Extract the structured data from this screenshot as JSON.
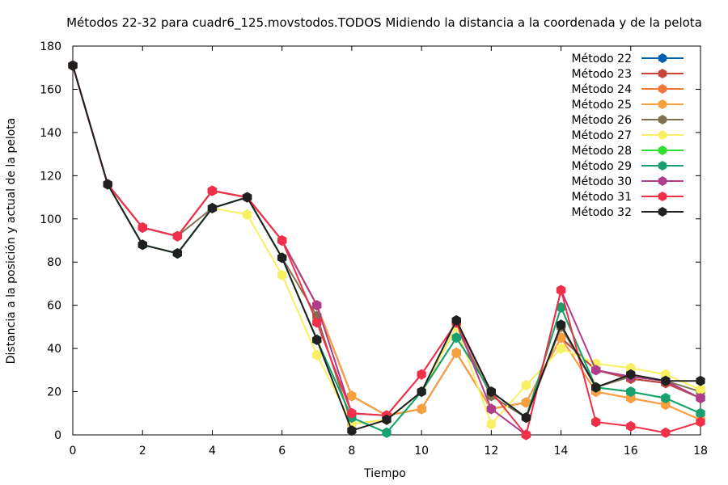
{
  "chart_data": {
    "type": "line",
    "title": "Métodos 22-32 para cuadr6_125.movstodos.TODOS Midiendo la distancia a la coordenada y de la pelota",
    "xlabel": "Tiempo",
    "ylabel": "Distancia a la posición y actual de la pelota",
    "xlim": [
      0,
      18
    ],
    "ylim": [
      0,
      180
    ],
    "x_ticks": [
      "0",
      "2",
      "4",
      "6",
      "8",
      "10",
      "12",
      "14",
      "16",
      "18"
    ],
    "y_ticks": [
      "0",
      "20",
      "40",
      "60",
      "80",
      "100",
      "120",
      "140",
      "160",
      "180"
    ],
    "grid": false,
    "legend_position": "top-right",
    "x": [
      0,
      1,
      2,
      3,
      4,
      5,
      6,
      7,
      8,
      9,
      10,
      11,
      12,
      13,
      14,
      15,
      16,
      17,
      18
    ],
    "series": [
      {
        "name": "Método 22",
        "color": "#0060ad",
        "values": [
          171,
          116,
          96,
          92,
          113,
          110,
          90,
          60,
          18,
          9,
          12,
          38,
          12,
          15,
          45,
          30,
          26,
          24,
          17
        ]
      },
      {
        "name": "Método 23",
        "color": "#c8453c",
        "values": [
          171,
          116,
          96,
          92,
          113,
          110,
          90,
          60,
          18,
          9,
          12,
          38,
          12,
          15,
          45,
          30,
          26,
          24,
          17
        ]
      },
      {
        "name": "Método 24",
        "color": "#f07838",
        "values": [
          171,
          116,
          96,
          92,
          113,
          110,
          90,
          60,
          18,
          9,
          12,
          38,
          12,
          15,
          45,
          20,
          17,
          14,
          7
        ]
      },
      {
        "name": "Método 25",
        "color": "#f8a040",
        "values": [
          171,
          116,
          96,
          92,
          113,
          110,
          90,
          60,
          18,
          9,
          12,
          38,
          12,
          15,
          45,
          20,
          17,
          14,
          7
        ]
      },
      {
        "name": "Método 26",
        "color": "#7f7050",
        "values": [
          171,
          116,
          96,
          92,
          105,
          110,
          82,
          55,
          5,
          7,
          20,
          50,
          18,
          8,
          50,
          22,
          27,
          25,
          20
        ]
      },
      {
        "name": "Método 27",
        "color": "#f8f060",
        "values": [
          171,
          116,
          88,
          84,
          105,
          102,
          74,
          37,
          5,
          7,
          20,
          50,
          5,
          23,
          40,
          33,
          31,
          28,
          21
        ]
      },
      {
        "name": "Método 28",
        "color": "#30e030",
        "values": [
          171,
          116,
          88,
          84,
          105,
          110,
          82,
          44,
          8,
          1,
          20,
          45,
          20,
          8,
          59,
          22,
          20,
          17,
          10
        ]
      },
      {
        "name": "Método 29",
        "color": "#18a070",
        "values": [
          171,
          116,
          88,
          84,
          105,
          110,
          82,
          44,
          8,
          1,
          20,
          45,
          20,
          8,
          59,
          22,
          20,
          17,
          10
        ]
      },
      {
        "name": "Método 30",
        "color": "#b03c8c",
        "values": [
          171,
          116,
          96,
          92,
          113,
          110,
          90,
          60,
          10,
          9,
          28,
          52,
          12,
          0,
          67,
          30,
          27,
          25,
          17
        ]
      },
      {
        "name": "Método 31",
        "color": "#f03048",
        "values": [
          171,
          116,
          96,
          92,
          113,
          110,
          90,
          52,
          10,
          9,
          28,
          52,
          20,
          0,
          67,
          6,
          4,
          1,
          6
        ]
      },
      {
        "name": "Método 32",
        "color": "#202020",
        "values": [
          171,
          116,
          88,
          84,
          105,
          110,
          82,
          44,
          2,
          7,
          20,
          53,
          20,
          8,
          51,
          22,
          28,
          25,
          25
        ]
      }
    ]
  }
}
